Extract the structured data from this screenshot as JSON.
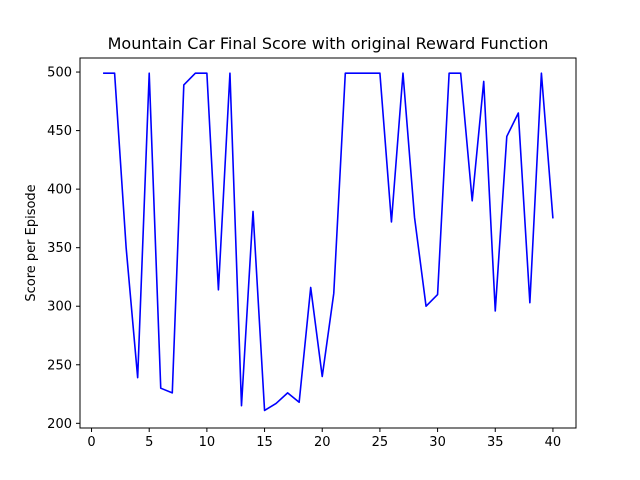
{
  "chart_data": {
    "type": "line",
    "title": "Mountain Car Final Score with original Reward Function",
    "xlabel": "",
    "ylabel": "Score per Episode",
    "xlim": [
      -1,
      42
    ],
    "ylim": [
      196,
      512
    ],
    "x_ticks": [
      0,
      5,
      10,
      15,
      20,
      25,
      30,
      35,
      40
    ],
    "y_ticks": [
      200,
      250,
      300,
      350,
      400,
      450,
      500
    ],
    "grid": false,
    "line_color": "#0000ff",
    "x": [
      1,
      2,
      3,
      4,
      5,
      6,
      7,
      8,
      9,
      10,
      11,
      12,
      13,
      14,
      15,
      16,
      17,
      18,
      19,
      20,
      21,
      22,
      23,
      24,
      25,
      26,
      27,
      28,
      29,
      30,
      31,
      32,
      33,
      34,
      35,
      36,
      37,
      38,
      39,
      40
    ],
    "values": [
      499,
      499,
      350,
      239,
      499,
      230,
      226,
      489,
      499,
      499,
      314,
      499,
      215,
      381,
      211,
      217,
      226,
      218,
      316,
      240,
      311,
      499,
      499,
      499,
      499,
      372,
      499,
      376,
      300,
      310,
      499,
      499,
      390,
      492,
      296,
      445,
      465,
      303,
      499,
      375
    ]
  }
}
